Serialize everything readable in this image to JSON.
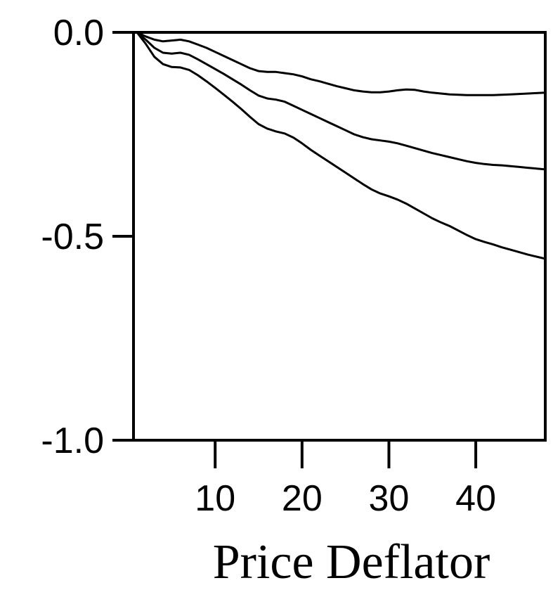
{
  "chart_data": {
    "type": "line",
    "title": "",
    "xlabel": "Price Deflator",
    "ylabel": "",
    "xlim": [
      0.6,
      48
    ],
    "ylim": [
      -1.0,
      0.0
    ],
    "x_ticks": [
      10,
      20,
      30,
      40
    ],
    "x_tick_labels": [
      "10",
      "20",
      "30",
      "40"
    ],
    "y_ticks": [
      0.0,
      -0.5,
      -1.0
    ],
    "y_tick_labels": [
      "0.0",
      "-0.5",
      "-1.0"
    ],
    "grid": false,
    "legend": "none",
    "x": [
      1,
      2,
      3,
      4,
      5,
      6,
      7,
      8,
      9,
      10,
      11,
      12,
      13,
      14,
      15,
      16,
      17,
      18,
      19,
      20,
      21,
      22,
      23,
      24,
      25,
      26,
      27,
      28,
      29,
      30,
      31,
      32,
      33,
      34,
      35,
      36,
      37,
      38,
      39,
      40,
      41,
      42,
      43,
      44,
      45,
      46,
      47,
      48
    ],
    "series": [
      {
        "values": [
          0.0,
          -0.01,
          -0.018,
          -0.022,
          -0.02,
          -0.018,
          -0.022,
          -0.03,
          -0.038,
          -0.048,
          -0.058,
          -0.068,
          -0.078,
          -0.088,
          -0.095,
          -0.097,
          -0.097,
          -0.1,
          -0.103,
          -0.108,
          -0.115,
          -0.12,
          -0.126,
          -0.132,
          -0.137,
          -0.142,
          -0.145,
          -0.147,
          -0.147,
          -0.145,
          -0.142,
          -0.14,
          -0.141,
          -0.145,
          -0.148,
          -0.15,
          -0.152,
          -0.153,
          -0.154,
          -0.154,
          -0.154,
          -0.154,
          -0.153,
          -0.152,
          -0.151,
          -0.15,
          -0.149,
          -0.148
        ]
      },
      {
        "values": [
          0.0,
          -0.018,
          -0.038,
          -0.05,
          -0.052,
          -0.05,
          -0.055,
          -0.066,
          -0.078,
          -0.09,
          -0.102,
          -0.115,
          -0.128,
          -0.142,
          -0.155,
          -0.162,
          -0.165,
          -0.17,
          -0.18,
          -0.19,
          -0.2,
          -0.21,
          -0.22,
          -0.23,
          -0.24,
          -0.25,
          -0.257,
          -0.262,
          -0.265,
          -0.268,
          -0.272,
          -0.278,
          -0.284,
          -0.29,
          -0.296,
          -0.301,
          -0.306,
          -0.311,
          -0.316,
          -0.32,
          -0.323,
          -0.325,
          -0.326,
          -0.328,
          -0.33,
          -0.332,
          -0.334,
          -0.336
        ]
      },
      {
        "values": [
          0.0,
          -0.028,
          -0.06,
          -0.078,
          -0.085,
          -0.086,
          -0.092,
          -0.105,
          -0.12,
          -0.136,
          -0.153,
          -0.17,
          -0.188,
          -0.207,
          -0.225,
          -0.236,
          -0.243,
          -0.248,
          -0.258,
          -0.272,
          -0.288,
          -0.302,
          -0.316,
          -0.33,
          -0.344,
          -0.358,
          -0.372,
          -0.385,
          -0.395,
          -0.402,
          -0.41,
          -0.42,
          -0.432,
          -0.444,
          -0.456,
          -0.466,
          -0.475,
          -0.486,
          -0.497,
          -0.507,
          -0.514,
          -0.52,
          -0.527,
          -0.533,
          -0.539,
          -0.545,
          -0.55,
          -0.555
        ]
      }
    ]
  }
}
